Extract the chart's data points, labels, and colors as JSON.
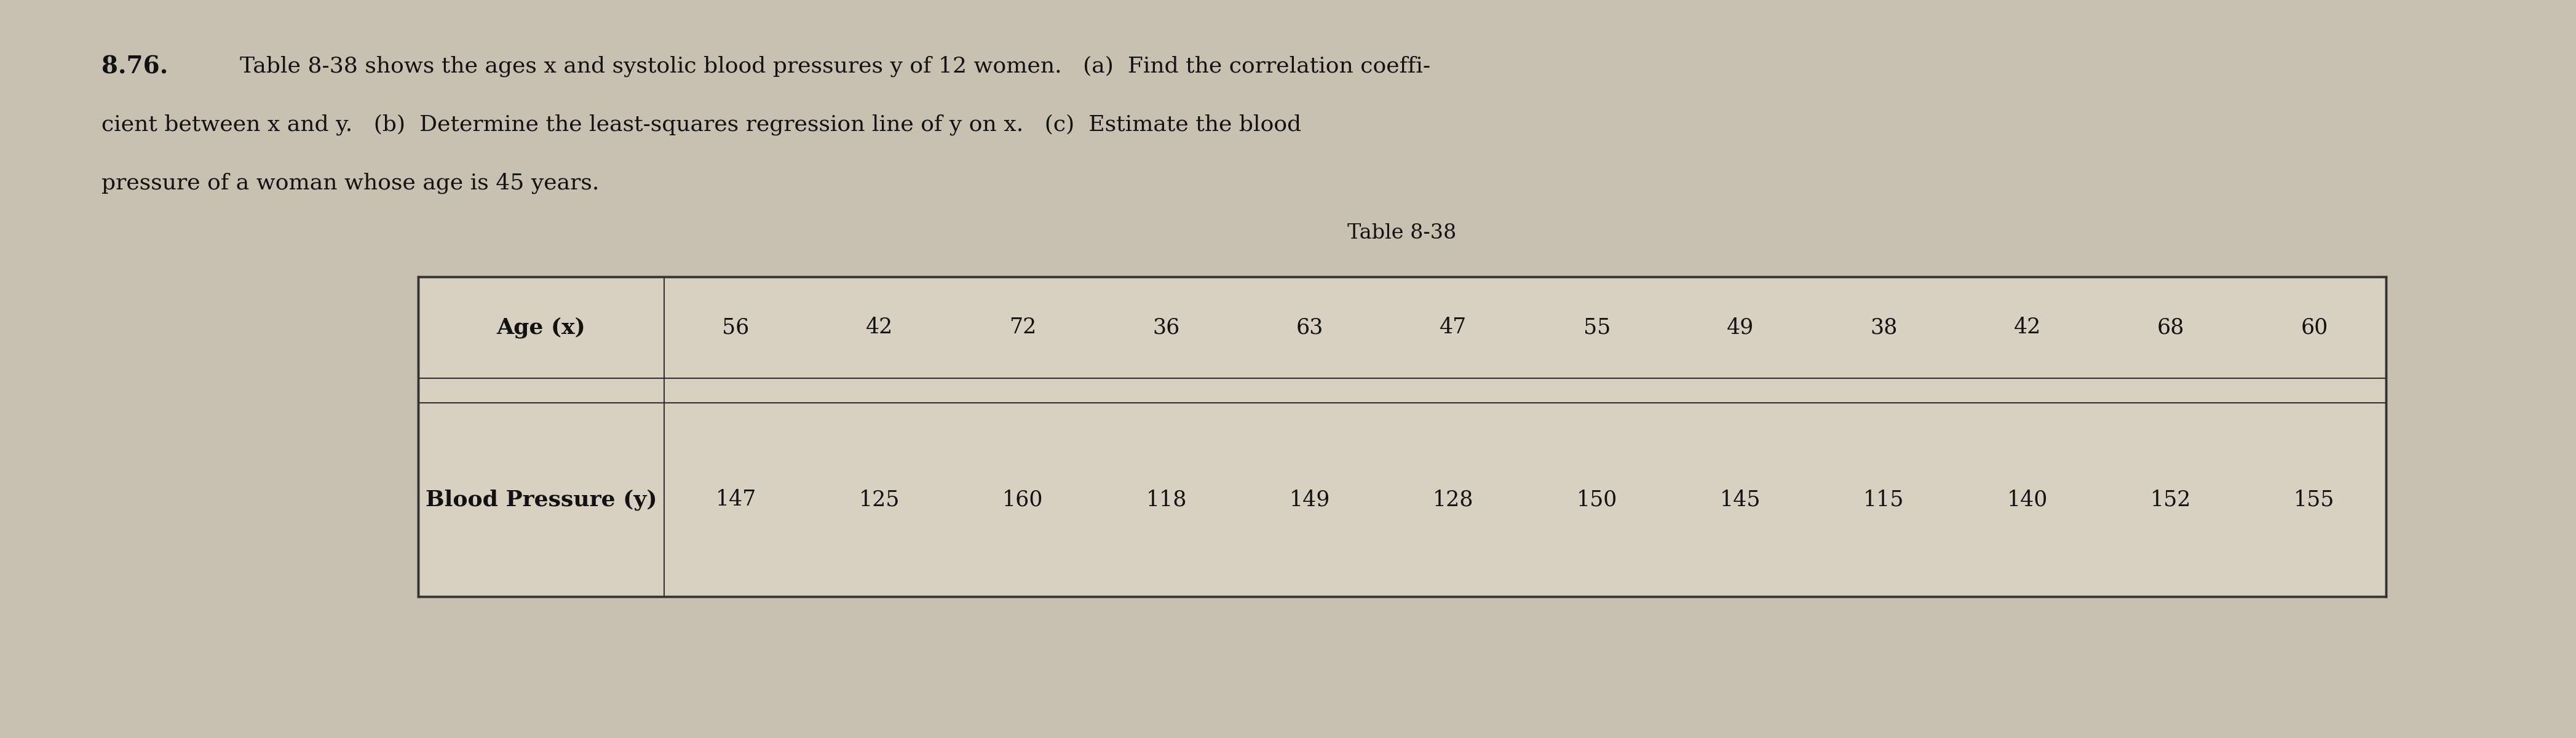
{
  "problem_number": "8.76.",
  "problem_text_line1": "Table 8-38 shows the ages x and systolic blood pressures y of 12 women.   (a)  Find the correlation coeffi-",
  "problem_text_line2": "cient between x and y.   (b)  Determine the least-squares regression line of y on x.   (c)  Estimate the blood",
  "problem_text_line3": "pressure of a woman whose age is 45 years.",
  "table_title": "Table 8-38",
  "col1_header": "Age (x)",
  "col2_header": "Blood Pressure (y)",
  "age_values": [
    56,
    42,
    72,
    36,
    63,
    47,
    55,
    49,
    38,
    42,
    68,
    60
  ],
  "bp_values": [
    147,
    125,
    160,
    118,
    149,
    128,
    150,
    145,
    115,
    140,
    152,
    155
  ],
  "background_color": "#c8c0b0",
  "text_color": "#111111",
  "table_bg": "#d8d0c0",
  "font_size_problem_num": 28,
  "font_size_text": 26,
  "font_size_table_header": 26,
  "font_size_table_data": 25,
  "font_size_table_title": 24
}
